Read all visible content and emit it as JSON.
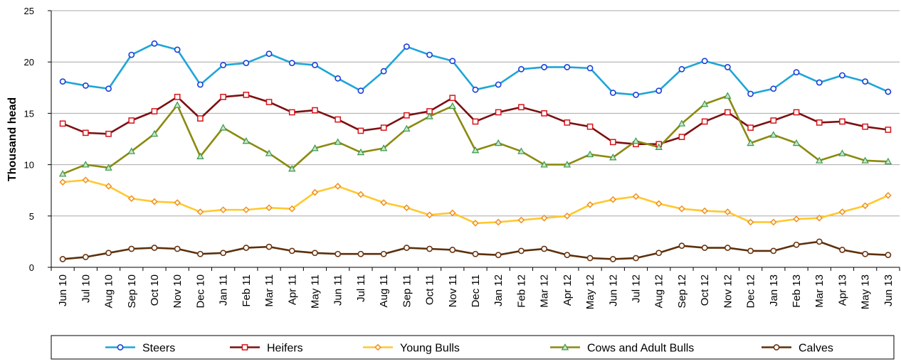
{
  "chart_data": {
    "type": "line",
    "title": "",
    "xlabel": "",
    "ylabel": "Thousand head",
    "ylim": [
      0,
      25
    ],
    "yticks": [
      "0",
      "5",
      "10",
      "15",
      "20",
      "25"
    ],
    "grid": true,
    "legend_position": "bottom",
    "categories": [
      "Jun 10",
      "Jul 10",
      "Aug 10",
      "Sep 10",
      "Oct 10",
      "Nov 10",
      "Dec 10",
      "Jan 11",
      "Feb 11",
      "Mar 11",
      "Apr 11",
      "May 11",
      "Jun 11",
      "Jul 11",
      "Aug 11",
      "Sep 11",
      "Oct 11",
      "Nov 11",
      "Dec 11",
      "Jan 12",
      "Feb 12",
      "Mar 12",
      "Apr 12",
      "May 12",
      "Jun 12",
      "Jul 12",
      "Aug 12",
      "Sep 12",
      "Oct 12",
      "Nov 12",
      "Dec 12",
      "Jan 13",
      "Feb 13",
      "Mar 13",
      "Apr 13",
      "May 13",
      "Jun 13"
    ],
    "series": [
      {
        "name": "Steers",
        "color": "#1ea5d8",
        "marker": "circle-blue",
        "values": [
          18.1,
          17.7,
          17.4,
          20.7,
          21.8,
          21.2,
          17.8,
          19.7,
          19.9,
          20.8,
          19.9,
          19.7,
          18.4,
          17.2,
          19.1,
          21.5,
          20.7,
          20.1,
          17.3,
          17.8,
          19.3,
          19.5,
          19.5,
          19.4,
          17.0,
          16.8,
          17.2,
          19.3,
          20.1,
          19.5,
          16.9,
          17.4,
          19.0,
          18.0,
          18.7,
          18.1,
          17.1
        ]
      },
      {
        "name": "Heifers",
        "color": "#7b1012",
        "marker": "square-red",
        "values": [
          14.0,
          13.1,
          13.0,
          14.3,
          15.2,
          16.6,
          14.5,
          16.6,
          16.8,
          16.1,
          15.1,
          15.3,
          14.4,
          13.3,
          13.6,
          14.8,
          15.2,
          16.5,
          14.2,
          15.1,
          15.6,
          15.0,
          14.1,
          13.7,
          12.2,
          12.0,
          12.0,
          12.7,
          14.2,
          15.1,
          13.6,
          14.3,
          15.1,
          14.1,
          14.2,
          13.7,
          13.4
        ]
      },
      {
        "name": "Young Bulls",
        "color": "#ffc82e",
        "marker": "diamond-orange",
        "values": [
          8.3,
          8.5,
          7.9,
          6.7,
          6.4,
          6.3,
          5.4,
          5.6,
          5.6,
          5.8,
          5.7,
          7.3,
          7.9,
          7.1,
          6.3,
          5.8,
          5.1,
          5.3,
          4.3,
          4.4,
          4.6,
          4.8,
          5.0,
          6.1,
          6.6,
          6.9,
          6.2,
          5.7,
          5.5,
          5.4,
          4.4,
          4.4,
          4.7,
          4.8,
          5.4,
          6.0,
          7.0
        ]
      },
      {
        "name": "Cows and Adult Bulls",
        "color": "#8a8a0f",
        "marker": "triangle-green",
        "values": [
          9.1,
          10.0,
          9.7,
          11.3,
          13.0,
          15.8,
          10.8,
          13.6,
          12.3,
          11.1,
          9.6,
          11.6,
          12.2,
          11.2,
          11.6,
          13.5,
          14.7,
          15.7,
          11.4,
          12.1,
          11.3,
          10.0,
          10.0,
          11.0,
          10.7,
          12.3,
          11.7,
          14.0,
          15.9,
          16.7,
          12.1,
          12.9,
          12.1,
          10.4,
          11.1,
          10.4,
          10.3
        ]
      },
      {
        "name": "Calves",
        "color": "#5c300c",
        "marker": "circle-brown",
        "values": [
          0.8,
          1.0,
          1.4,
          1.8,
          1.9,
          1.8,
          1.3,
          1.4,
          1.9,
          2.0,
          1.6,
          1.4,
          1.3,
          1.3,
          1.3,
          1.9,
          1.8,
          1.7,
          1.3,
          1.2,
          1.6,
          1.8,
          1.2,
          0.9,
          0.8,
          0.9,
          1.4,
          2.1,
          1.9,
          1.9,
          1.6,
          1.6,
          2.2,
          2.5,
          1.7,
          1.3,
          1.2
        ]
      }
    ]
  }
}
